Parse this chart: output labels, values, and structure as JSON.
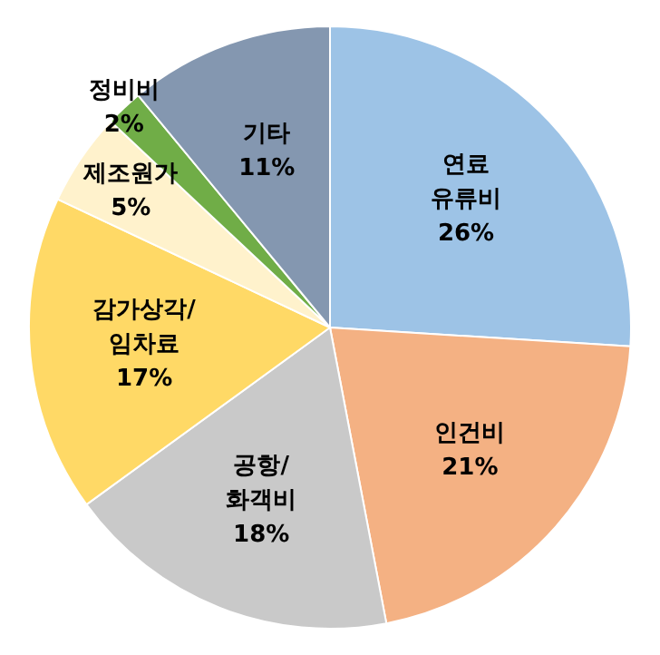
{
  "chart_data": {
    "type": "pie",
    "categories": [
      "연료\n유류비",
      "인건비",
      "공항/\n화객비",
      "감가상각/\n임차료",
      "제조원가",
      "정비비",
      "기타"
    ],
    "values": [
      26,
      21,
      18,
      17,
      5,
      2,
      11
    ],
    "value_labels": [
      "26%",
      "21%",
      "18%",
      "17%",
      "5%",
      "2%",
      "11%"
    ],
    "colors": [
      "#9dc3e6",
      "#f4b183",
      "#c9c9c9",
      "#ffd966",
      "#fff2cc",
      "#70ad47",
      "#8497b0"
    ],
    "legend": false
  }
}
